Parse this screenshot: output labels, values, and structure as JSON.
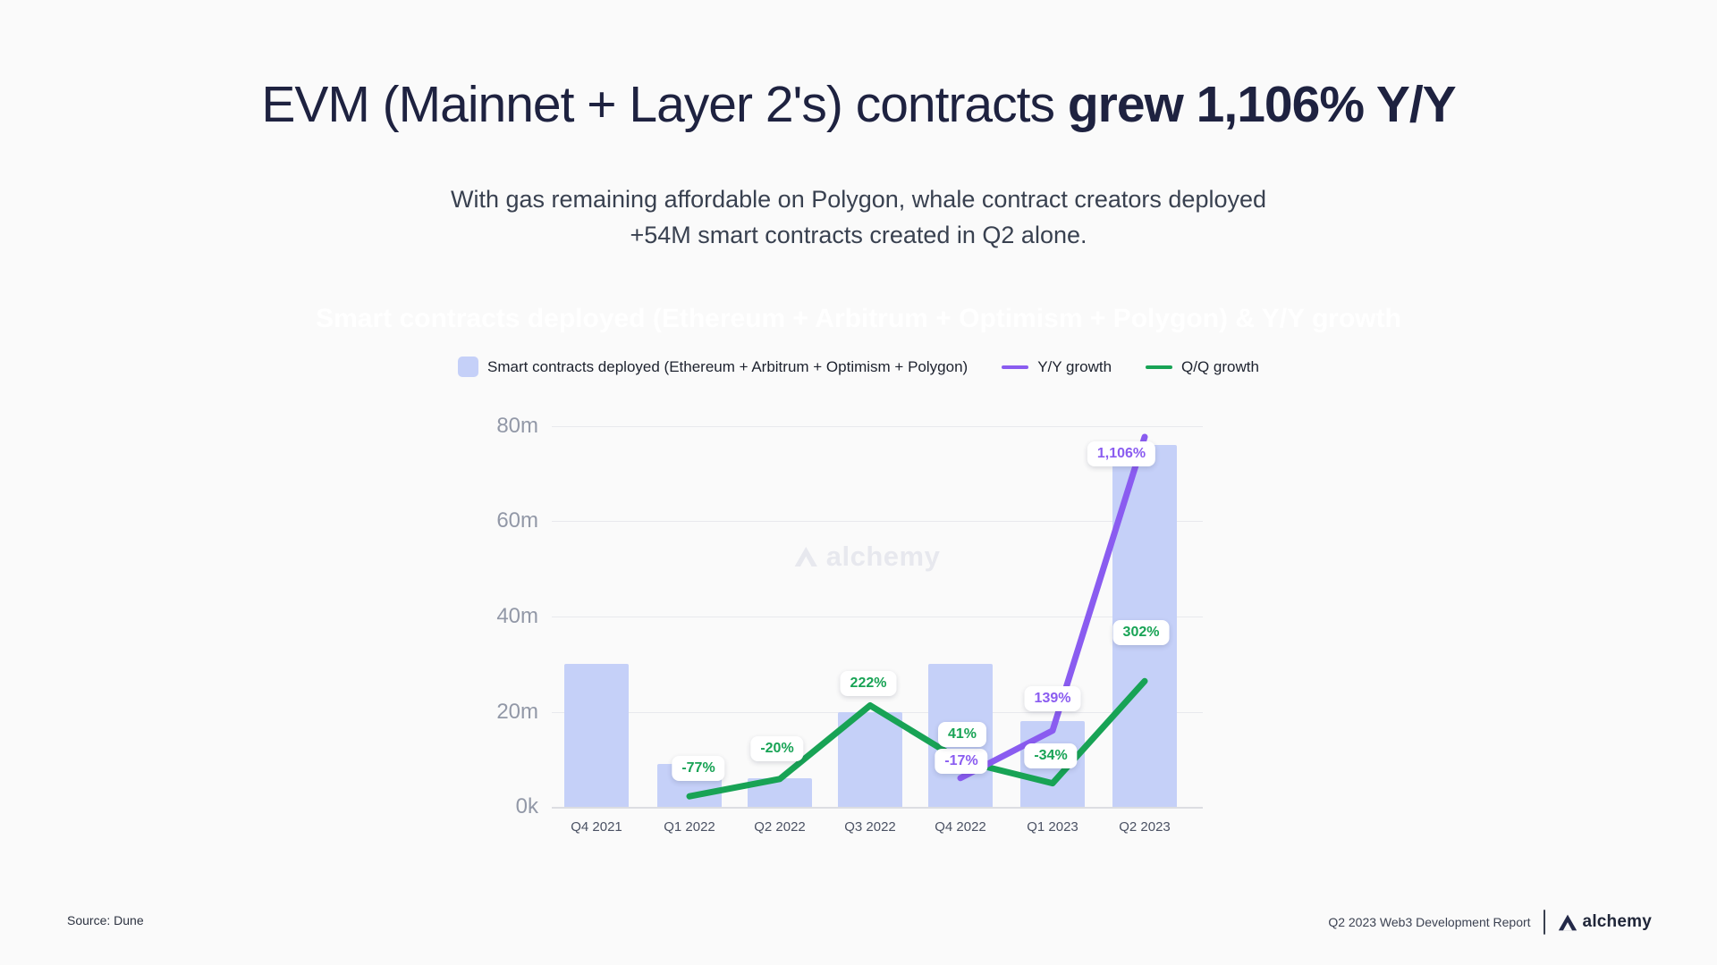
{
  "page": {
    "background": "#fafafa"
  },
  "header": {
    "title_regular": "EVM (Mainnet + Layer 2's) contracts ",
    "title_bold": "grew 1,106% Y/Y",
    "subtitle_line1": "With gas remaining affordable on Polygon, whale contract creators deployed",
    "subtitle_line2": "+54M smart contracts created in Q2 alone."
  },
  "hidden_chart_title": {
    "text": "Smart contracts deployed (Ethereum + Arbitrum + Optimism + Polygon) & Y/Y growth",
    "color": "#ffffff"
  },
  "legend": {
    "items": [
      {
        "label": "Smart contracts deployed (Ethereum + Arbitrum + Optimism + Polygon)",
        "swatch": "bar",
        "color": "#c5d0f8"
      },
      {
        "label": "Y/Y growth",
        "swatch": "line",
        "color": "#8a5cf0"
      },
      {
        "label": "Q/Q growth",
        "swatch": "line",
        "color": "#18a355"
      }
    ]
  },
  "chart_data": {
    "type": "bar+line",
    "categories": [
      "Q4 2021",
      "Q1 2022",
      "Q2 2022",
      "Q3 2022",
      "Q4 2022",
      "Q1 2023",
      "Q2 2023"
    ],
    "bar_series": {
      "name": "Smart contracts deployed (Ethereum + Arbitrum + Optimism + Polygon)",
      "unit": "millions",
      "color": "#c5d0f8",
      "values": [
        30,
        9,
        6,
        20,
        30,
        18,
        76
      ]
    },
    "line_series": [
      {
        "name": "Y/Y growth",
        "unit": "percent",
        "color": "#8a5cf0",
        "points": [
          {
            "category": "Q4 2022",
            "value": -17,
            "label": "-17%"
          },
          {
            "category": "Q1 2023",
            "value": 139,
            "label": "139%"
          },
          {
            "category": "Q2 2023",
            "value": 1106,
            "label": "1,106%"
          }
        ]
      },
      {
        "name": "Q/Q growth",
        "unit": "percent",
        "color": "#18a355",
        "points": [
          {
            "category": "Q1 2022",
            "value": -77,
            "label": "-77%"
          },
          {
            "category": "Q2 2022",
            "value": -20,
            "label": "-20%"
          },
          {
            "category": "Q3 2022",
            "value": 222,
            "label": "222%"
          },
          {
            "category": "Q4 2022",
            "value": 41,
            "label": "41%"
          },
          {
            "category": "Q1 2023",
            "value": -34,
            "label": "-34%"
          },
          {
            "category": "Q2 2023",
            "value": 302,
            "label": "302%"
          }
        ]
      }
    ],
    "y_axis": {
      "ticks": [
        "80m",
        "60m",
        "40m",
        "20m",
        "0k"
      ],
      "lim_millions": [
        0,
        80
      ],
      "grid": true
    },
    "legend_position": "top",
    "watermark": "alchemy"
  },
  "footer": {
    "source_label": "Source: Dune",
    "report_label": "Q2 2023 Web3 Development Report",
    "brand": "alchemy"
  }
}
